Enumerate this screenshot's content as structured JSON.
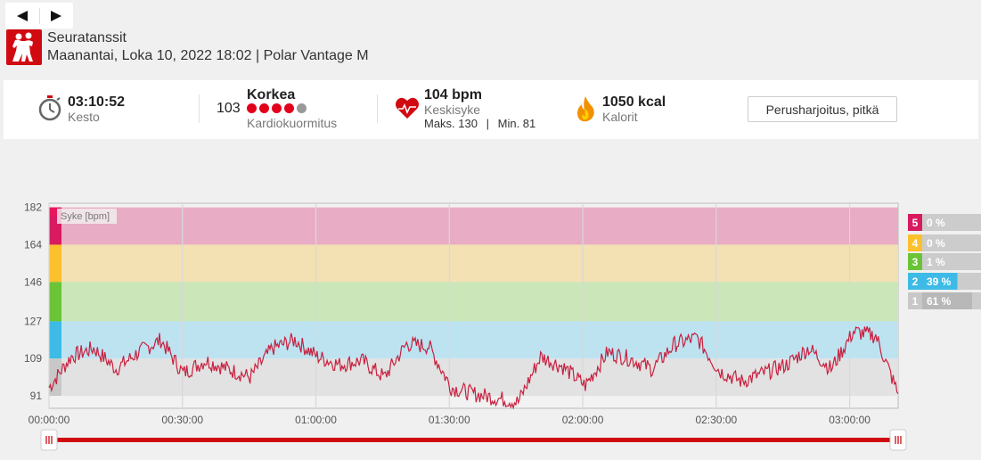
{
  "nav": {
    "prev_icon": "triangle-left-icon",
    "next_icon": "triangle-right-icon"
  },
  "header": {
    "sport_icon": "dancers-icon",
    "sport_name": "Seuratanssit",
    "date_line": "Maanantai, Loka 10, 2022 18:02 | Polar Vantage M"
  },
  "summary": {
    "duration": {
      "icon": "stopwatch-icon",
      "value": "03:10:52",
      "label": "Kesto"
    },
    "cardio_load": {
      "score": "103",
      "level": "Korkea",
      "label": "Kardiokuormitus",
      "dots_filled": 4,
      "dots_total": 5
    },
    "heart_rate": {
      "icon": "heart-icon",
      "value": "104 bpm",
      "label": "Keskisyke",
      "max_label": "Maks. 130",
      "sep": "|",
      "min_label": "Min. 81"
    },
    "calories": {
      "icon": "flame-icon",
      "value": "1050 kcal",
      "label": "Kalorit"
    },
    "training_type": "Perusharjoitus, pitkä"
  },
  "colors": {
    "accent": "#d10a11",
    "zone5": "#e8acc4",
    "zone4": "#f3e1b3",
    "zone3": "#cbe6b8",
    "zone2": "#bde3f1",
    "zone1": "#e2e2e2",
    "zone5_strong": "#d81b60",
    "zone4_strong": "#fbc02d",
    "zone3_strong": "#6ac436",
    "zone2_strong": "#3dbbe6",
    "zone1_strong": "#c8c8c8",
    "line": "#c8203f"
  },
  "chart_data": {
    "type": "line",
    "series": [
      {
        "name": "Syke [bpm]",
        "x": [
          "00:00:00",
          "00:05:00",
          "00:10:00",
          "00:15:00",
          "00:20:00",
          "00:25:00",
          "00:30:00",
          "00:35:00",
          "00:40:00",
          "00:45:00",
          "00:50:00",
          "00:55:00",
          "01:00:00",
          "01:05:00",
          "01:10:00",
          "01:15:00",
          "01:20:00",
          "01:25:00",
          "01:30:00",
          "01:35:00",
          "01:40:00",
          "01:45:00",
          "01:50:00",
          "01:55:00",
          "02:00:00",
          "02:05:00",
          "02:10:00",
          "02:15:00",
          "02:20:00",
          "02:25:00",
          "02:30:00",
          "02:35:00",
          "02:40:00",
          "02:45:00",
          "02:50:00",
          "02:55:00",
          "03:00:00",
          "03:05:00",
          "03:10:00"
        ],
        "values": [
          95,
          110,
          114,
          104,
          112,
          118,
          102,
          108,
          104,
          100,
          114,
          118,
          110,
          106,
          108,
          100,
          116,
          115,
          95,
          92,
          90,
          88,
          110,
          105,
          96,
          112,
          109,
          104,
          116,
          119,
          103,
          98,
          102,
          106,
          114,
          104,
          122,
          120,
          92
        ]
      }
    ],
    "y_ticks": [
      91,
      109,
      127,
      146,
      164,
      182
    ],
    "y_range": [
      85,
      184
    ],
    "x_ticks": [
      "00:00:00",
      "00:30:00",
      "01:00:00",
      "01:30:00",
      "02:00:00",
      "02:30:00",
      "03:00:00"
    ],
    "x_range_minutes": [
      0,
      190.9
    ],
    "ylabel": "Syke [bpm]",
    "zones": [
      {
        "num": "5",
        "pct": "0 %",
        "from": 164,
        "to": 182
      },
      {
        "num": "4",
        "pct": "0 %",
        "from": 146,
        "to": 164
      },
      {
        "num": "3",
        "pct": "1 %",
        "from": 127,
        "to": 146
      },
      {
        "num": "2",
        "pct": "39 %",
        "from": 109,
        "to": 127
      },
      {
        "num": "1",
        "pct": "61 %",
        "from": 91,
        "to": 109
      }
    ],
    "grid": true
  },
  "slider": {
    "start_handle_icon": "grip-icon",
    "end_handle_icon": "grip-icon",
    "range_fraction": [
      0,
      1
    ]
  }
}
